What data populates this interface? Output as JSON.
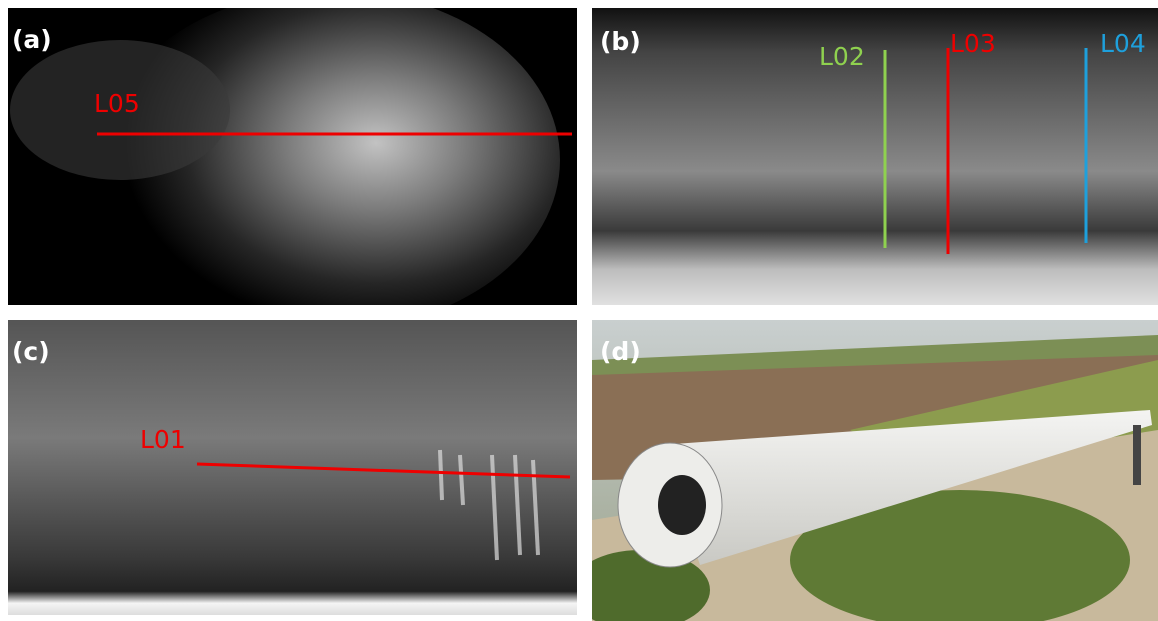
{
  "panels": [
    {
      "label": "(a)",
      "line_labels": [
        "L05"
      ]
    },
    {
      "label": "(b)",
      "line_labels": [
        "L02",
        "L03",
        "L04"
      ]
    },
    {
      "label": "(c)",
      "line_labels": [
        "L01"
      ]
    },
    {
      "label": "(d)"
    }
  ]
}
